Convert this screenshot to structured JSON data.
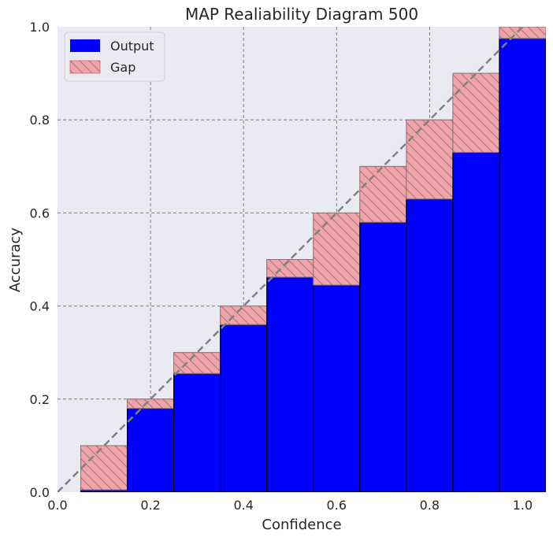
{
  "chart_data": {
    "type": "bar",
    "title": "MAP Realiability Diagram 500",
    "xlabel": "Confidence",
    "ylabel": "Accuracy",
    "xlim": [
      0.0,
      1.05
    ],
    "ylim": [
      0.0,
      1.0
    ],
    "xticks": [
      "0.0",
      "0.2",
      "0.4",
      "0.6",
      "0.8",
      "1.0"
    ],
    "yticks": [
      "0.0",
      "0.2",
      "0.4",
      "0.6",
      "0.8",
      "1.0"
    ],
    "grid": true,
    "legend_position": "top-left",
    "bin_width": 0.1,
    "bin_centers": [
      0.1,
      0.2,
      0.3,
      0.4,
      0.5,
      0.6,
      0.7,
      0.8,
      0.9,
      1.0
    ],
    "series": [
      {
        "name": "Output",
        "values": [
          0.005,
          0.18,
          0.255,
          0.36,
          0.462,
          0.445,
          0.58,
          0.63,
          0.73,
          0.975
        ]
      },
      {
        "name": "Gap",
        "values": [
          0.1,
          0.2,
          0.3,
          0.4,
          0.5,
          0.6,
          0.7,
          0.8,
          0.9,
          1.0
        ]
      }
    ],
    "diagonal": [
      [
        0,
        0
      ],
      [
        1.05,
        1.05
      ]
    ],
    "colors": {
      "output": "#0000ff",
      "gap_fill": "#f0a3a8",
      "gap_edge": "#d98c90",
      "plot_bg": "#eaeaf2",
      "grid": "#7f7f7f",
      "diagonal": "#808080"
    }
  }
}
